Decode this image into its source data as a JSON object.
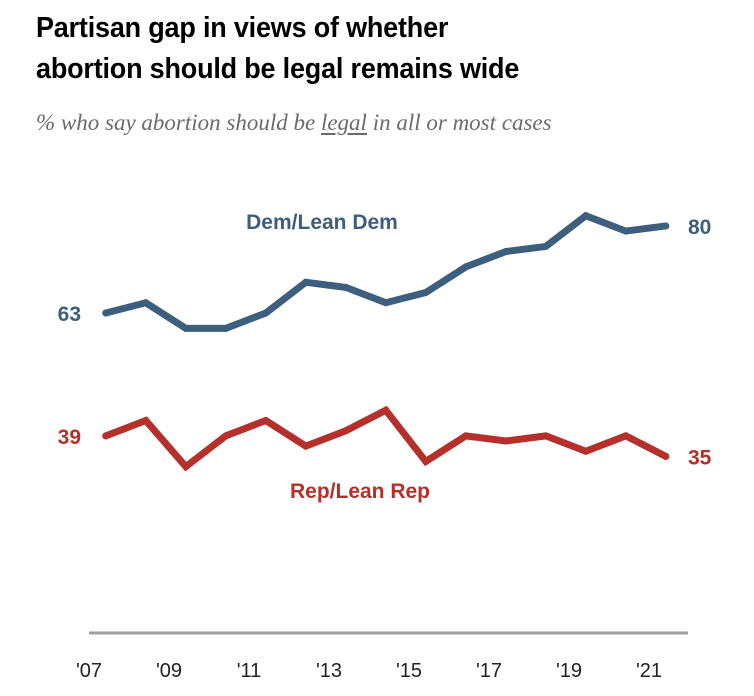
{
  "colors": {
    "dem": "#3d5f7d",
    "rep": "#b5302a",
    "axis": "#a0a0a0",
    "subtitle": "#6b6b6b"
  },
  "chart_data": {
    "type": "line",
    "title": "Partisan gap in views of whether abortion should be legal remains wide",
    "title_lines": [
      "Partisan gap in views of whether",
      "abortion should be legal remains wide"
    ],
    "subtitle_parts": [
      "% who say abortion should be ",
      "legal",
      " in all or most cases"
    ],
    "xlabel": "",
    "ylabel": "",
    "x": [
      2007,
      2008,
      2009,
      2010,
      2011,
      2012,
      2013,
      2014,
      2015,
      2016,
      2017,
      2018,
      2019,
      2020,
      2021
    ],
    "x_tick_labels": [
      "'07",
      "'09",
      "'11",
      "'13",
      "'15",
      "'17",
      "'19",
      "'21"
    ],
    "x_tick_values": [
      2007,
      2009,
      2011,
      2013,
      2015,
      2017,
      2019,
      2021
    ],
    "xlim": [
      2007,
      2022
    ],
    "ylim": [
      0,
      100
    ],
    "grid": false,
    "legend": "inline labels",
    "series": [
      {
        "name": "Dem/Lean Dem",
        "color_key": "dem",
        "values": [
          63,
          65,
          60,
          60,
          63,
          69,
          68,
          65,
          67,
          72,
          75,
          76,
          82,
          79,
          80
        ],
        "start_label": "63",
        "end_label": "80"
      },
      {
        "name": "Rep/Lean Rep",
        "color_key": "rep",
        "values": [
          39,
          42,
          33,
          39,
          42,
          37,
          40,
          44,
          34,
          39,
          38,
          39,
          36,
          39,
          35
        ],
        "start_label": "39",
        "end_label": "35"
      }
    ]
  }
}
